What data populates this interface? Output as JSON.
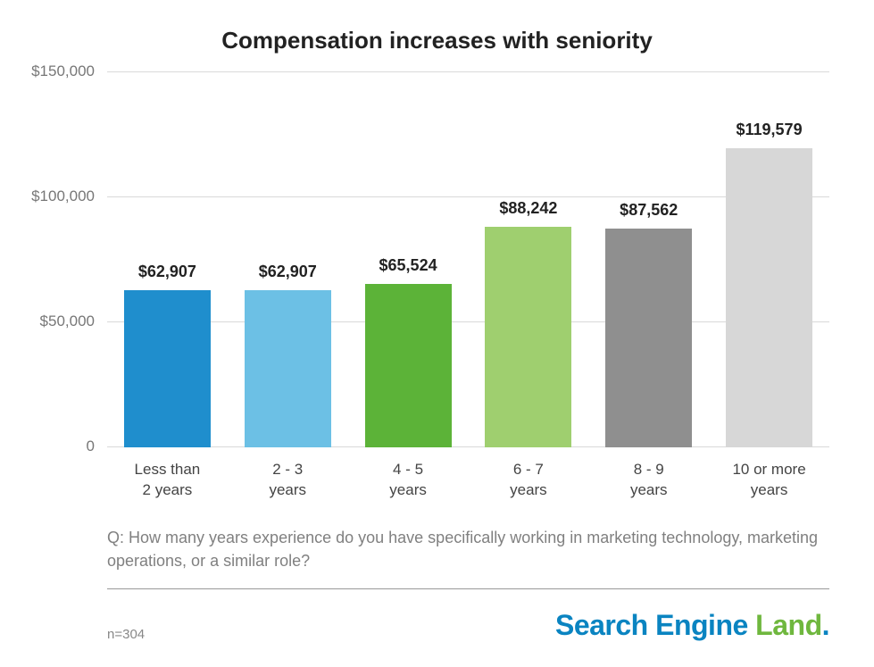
{
  "chart": {
    "type": "bar",
    "title": "Compensation increases with seniority",
    "title_fontsize": 26,
    "title_fontweight": 700,
    "background_color": "#ffffff",
    "grid_color": "#d9d9d9",
    "axis_text_color": "#777777",
    "axis_fontsize": 17,
    "ylim": [
      0,
      150000
    ],
    "ytick_step": 50000,
    "yticks": [
      {
        "value": 0,
        "label": "0"
      },
      {
        "value": 50000,
        "label": "$50,000"
      },
      {
        "value": 100000,
        "label": "$100,000"
      },
      {
        "value": 150000,
        "label": "$150,000"
      }
    ],
    "categories": [
      "Less than\n2 years",
      "2 - 3\nyears",
      "4 - 5\nyears",
      "6 - 7\nyears",
      "8 - 9\nyears",
      "10 or more\nyears"
    ],
    "values": [
      62907,
      62907,
      65524,
      88242,
      87562,
      119579
    ],
    "value_labels": [
      "$62,907",
      "$62,907",
      "$65,524",
      "$88,242",
      "$87,562",
      "$119,579"
    ],
    "bar_colors": [
      "#1f8ecd",
      "#6cc0e5",
      "#5cb338",
      "#9fcf6f",
      "#8f8f8f",
      "#d7d7d7"
    ],
    "bar_width": 0.72,
    "value_label_fontsize": 18,
    "value_label_fontweight": 700,
    "xlabel_fontsize": 17,
    "xlabel_color": "#444444"
  },
  "question": {
    "text": "Q: How many years experience do you have specifically working in marketing technology, marketing operations, or a similar role?",
    "fontsize": 18,
    "color": "#808080",
    "divider_color": "#999999"
  },
  "footer": {
    "sample_text": "n=304",
    "sample_fontsize": 15,
    "sample_color": "#888888",
    "brand_parts": [
      "Search ",
      "Engine ",
      "Land"
    ],
    "brand_colors": [
      "#0a84c1",
      "#0a84c1",
      "#6fb73e"
    ],
    "brand_fontsize": 32,
    "brand_trailing_dot_color": "#0a84c1"
  }
}
